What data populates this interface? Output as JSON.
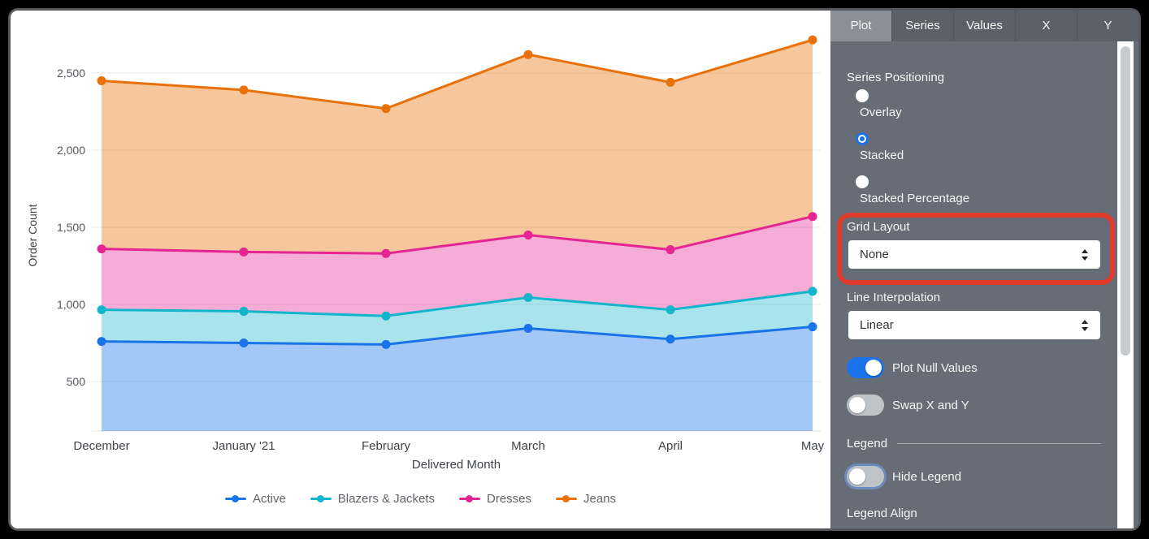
{
  "panel": {
    "tabs": [
      {
        "label": "Plot",
        "active": true
      },
      {
        "label": "Series",
        "active": false
      },
      {
        "label": "Values",
        "active": false
      },
      {
        "label": "X",
        "active": false
      },
      {
        "label": "Y",
        "active": false
      }
    ],
    "series_positioning": {
      "label": "Series Positioning",
      "options": [
        {
          "label": "Overlay",
          "selected": false
        },
        {
          "label": "Stacked",
          "selected": true
        },
        {
          "label": "Stacked Percentage",
          "selected": false
        }
      ]
    },
    "grid_layout": {
      "label": "Grid Layout",
      "value": "None"
    },
    "line_interpolation": {
      "label": "Line Interpolation",
      "value": "Linear"
    },
    "plot_null_values": {
      "label": "Plot Null Values",
      "on": true
    },
    "swap_x_y": {
      "label": "Swap X and Y",
      "on": false
    },
    "legend_section": {
      "header": "Legend",
      "hide_legend": {
        "label": "Hide Legend",
        "on": false
      },
      "legend_align_label": "Legend Align"
    },
    "colors": {
      "panel_bg": "#676d76",
      "tabbar_bg": "#5b6169",
      "active_tab_bg": "#8a9097",
      "toggle_on": "#1a73e8",
      "radio_selected": "#1a73e8",
      "highlight_annotation": "#e13b2e"
    }
  },
  "chart_data": {
    "type": "area",
    "stacking": "stacked",
    "title": "",
    "xlabel": "Delivered Month",
    "ylabel": "Order Count",
    "categories": [
      "December",
      "January '21",
      "February",
      "March",
      "April",
      "May"
    ],
    "series": [
      {
        "name": "Active",
        "color": "#1a73e8",
        "fill": "rgba(26,115,232,0.40)",
        "values": [
          760,
          750,
          740,
          845,
          775,
          855
        ]
      },
      {
        "name": "Blazers & Jackets",
        "color": "#12b5cb",
        "fill": "rgba(18,181,203,0.36)",
        "values": [
          205,
          205,
          185,
          200,
          190,
          230
        ]
      },
      {
        "name": "Dresses",
        "color": "#e52592",
        "fill": "rgba(229,37,146,0.38)",
        "values": [
          395,
          385,
          405,
          405,
          390,
          485
        ]
      },
      {
        "name": "Jeans",
        "color": "#e8710a",
        "fill": "rgba(232,113,10,0.40)",
        "values": [
          1090,
          1050,
          940,
          1170,
          1085,
          1145
        ]
      }
    ],
    "stacked_totals": [
      2450,
      2390,
      2270,
      2620,
      2440,
      2715
    ],
    "yticks": [
      {
        "value": 500,
        "label": "500"
      },
      {
        "value": 1000,
        "label": "1,000"
      },
      {
        "value": 1500,
        "label": "1,500"
      },
      {
        "value": 2000,
        "label": "2,000"
      },
      {
        "value": 2500,
        "label": "2,500"
      }
    ],
    "ylim": [
      180,
      2790
    ],
    "grid": true,
    "legend_position": "bottom"
  }
}
